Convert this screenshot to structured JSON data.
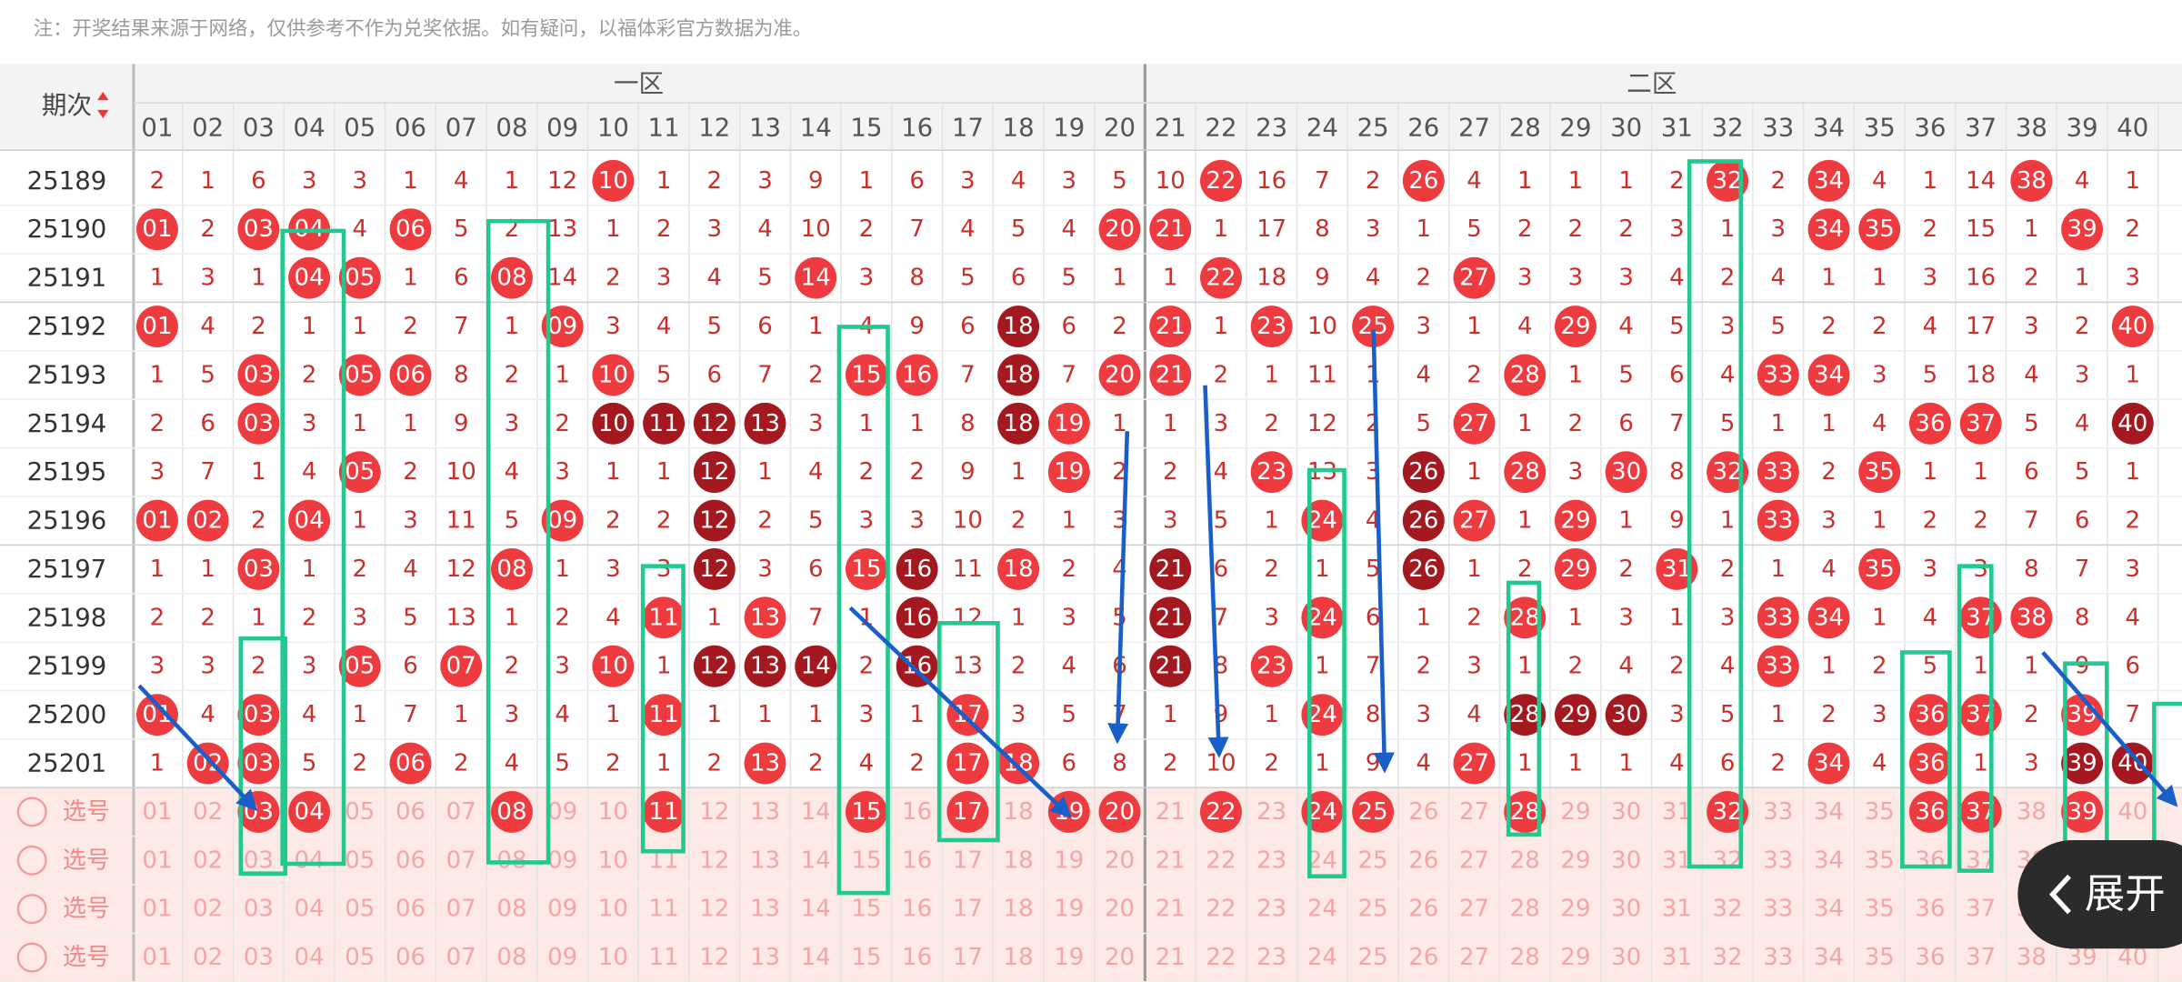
{
  "note": "注：开奖结果来源于网络，仅供参考不作为兑奖依据。如有疑问，以福体彩官方数据为准。",
  "header": {
    "issue_label": "期次",
    "zones": [
      "一区",
      "二区"
    ],
    "columns": [
      "01",
      "02",
      "03",
      "04",
      "05",
      "06",
      "07",
      "08",
      "09",
      "10",
      "11",
      "12",
      "13",
      "14",
      "15",
      "16",
      "17",
      "18",
      "19",
      "20",
      "21",
      "22",
      "23",
      "24",
      "25",
      "26",
      "27",
      "28",
      "29",
      "30",
      "31",
      "32",
      "33",
      "34",
      "35",
      "36",
      "37",
      "38",
      "39",
      "40"
    ]
  },
  "draws": [
    {
      "issue": "25189",
      "cells": [
        "2",
        "1",
        "6",
        "3",
        "3",
        "1",
        "4",
        "1",
        "12",
        "10",
        "1",
        "2",
        "3",
        "9",
        "1",
        "6",
        "3",
        "4",
        "3",
        "5",
        "10",
        "22",
        "16",
        "7",
        "2",
        "26",
        "4",
        "1",
        "1",
        "1",
        "2",
        "32",
        "2",
        "34",
        "4",
        "1",
        "14",
        "38",
        "4",
        "1"
      ]
    },
    {
      "issue": "25190",
      "cells": [
        "01",
        "2",
        "03",
        "04",
        "4",
        "06",
        "5",
        "2",
        "13",
        "1",
        "2",
        "3",
        "4",
        "10",
        "2",
        "7",
        "4",
        "5",
        "4",
        "20",
        "21",
        "1",
        "17",
        "8",
        "3",
        "1",
        "5",
        "2",
        "2",
        "2",
        "3",
        "1",
        "3",
        "34",
        "35",
        "2",
        "15",
        "1",
        "39",
        "2"
      ]
    },
    {
      "issue": "25191",
      "cells": [
        "1",
        "3",
        "1",
        "04",
        "05",
        "1",
        "6",
        "08",
        "14",
        "2",
        "3",
        "4",
        "5",
        "14",
        "3",
        "8",
        "5",
        "6",
        "5",
        "1",
        "1",
        "22",
        "18",
        "9",
        "4",
        "2",
        "27",
        "3",
        "3",
        "3",
        "4",
        "2",
        "4",
        "1",
        "1",
        "3",
        "16",
        "2",
        "1",
        "3"
      ]
    },
    {
      "issue": "25192",
      "cells": [
        "01",
        "4",
        "2",
        "1",
        "1",
        "2",
        "7",
        "1",
        "09",
        "3",
        "4",
        "5",
        "6",
        "1",
        "4",
        "9",
        "6",
        "18",
        "6",
        "2",
        "21",
        "1",
        "23",
        "10",
        "25",
        "3",
        "1",
        "4",
        "29",
        "4",
        "5",
        "3",
        "5",
        "2",
        "2",
        "4",
        "17",
        "3",
        "2",
        "40"
      ],
      "dark": [
        "18"
      ]
    },
    {
      "issue": "25193",
      "cells": [
        "1",
        "5",
        "03",
        "2",
        "05",
        "06",
        "8",
        "2",
        "1",
        "10",
        "5",
        "6",
        "7",
        "2",
        "15",
        "16",
        "7",
        "18",
        "7",
        "20",
        "21",
        "2",
        "1",
        "11",
        "1",
        "4",
        "2",
        "28",
        "1",
        "5",
        "6",
        "4",
        "33",
        "34",
        "3",
        "5",
        "18",
        "4",
        "3",
        "1"
      ],
      "dark": [
        "18"
      ]
    },
    {
      "issue": "25194",
      "cells": [
        "2",
        "6",
        "03",
        "3",
        "1",
        "1",
        "9",
        "3",
        "2",
        "10",
        "11",
        "12",
        "13",
        "3",
        "1",
        "1",
        "8",
        "18",
        "19",
        "1",
        "1",
        "3",
        "2",
        "12",
        "2",
        "5",
        "27",
        "1",
        "2",
        "6",
        "7",
        "5",
        "1",
        "1",
        "4",
        "36",
        "37",
        "5",
        "4",
        "40"
      ],
      "dark": [
        "10",
        "11",
        "12",
        "13",
        "18",
        "40"
      ]
    },
    {
      "issue": "25195",
      "cells": [
        "3",
        "7",
        "1",
        "4",
        "05",
        "2",
        "10",
        "4",
        "3",
        "1",
        "1",
        "12",
        "1",
        "4",
        "2",
        "2",
        "9",
        "1",
        "19",
        "2",
        "2",
        "4",
        "23",
        "13",
        "3",
        "26",
        "1",
        "28",
        "3",
        "30",
        "8",
        "32",
        "33",
        "2",
        "35",
        "1",
        "1",
        "6",
        "5",
        "1"
      ],
      "dark": [
        "12",
        "26"
      ]
    },
    {
      "issue": "25196",
      "cells": [
        "01",
        "02",
        "2",
        "04",
        "1",
        "3",
        "11",
        "5",
        "09",
        "2",
        "2",
        "12",
        "2",
        "5",
        "3",
        "3",
        "10",
        "2",
        "1",
        "3",
        "3",
        "5",
        "1",
        "24",
        "4",
        "26",
        "27",
        "1",
        "29",
        "1",
        "9",
        "1",
        "33",
        "3",
        "1",
        "2",
        "2",
        "7",
        "6",
        "2"
      ],
      "dark": [
        "12",
        "26"
      ]
    },
    {
      "issue": "25197",
      "cells": [
        "1",
        "1",
        "03",
        "1",
        "2",
        "4",
        "12",
        "08",
        "1",
        "3",
        "3",
        "12",
        "3",
        "6",
        "15",
        "16",
        "11",
        "18",
        "2",
        "4",
        "21",
        "6",
        "2",
        "1",
        "5",
        "26",
        "1",
        "2",
        "29",
        "2",
        "31",
        "2",
        "1",
        "4",
        "35",
        "3",
        "3",
        "8",
        "7",
        "3"
      ],
      "dark": [
        "12",
        "16",
        "21",
        "26"
      ]
    },
    {
      "issue": "25198",
      "cells": [
        "2",
        "2",
        "1",
        "2",
        "3",
        "5",
        "13",
        "1",
        "2",
        "4",
        "11",
        "1",
        "13",
        "7",
        "1",
        "16",
        "12",
        "1",
        "3",
        "5",
        "21",
        "7",
        "3",
        "24",
        "6",
        "1",
        "2",
        "28",
        "1",
        "3",
        "1",
        "3",
        "33",
        "34",
        "1",
        "4",
        "37",
        "38",
        "8",
        "4"
      ],
      "dark": [
        "16",
        "21"
      ]
    },
    {
      "issue": "25199",
      "cells": [
        "3",
        "3",
        "2",
        "3",
        "05",
        "6",
        "07",
        "2",
        "3",
        "10",
        "1",
        "12",
        "13",
        "14",
        "2",
        "16",
        "13",
        "2",
        "4",
        "6",
        "21",
        "8",
        "23",
        "1",
        "7",
        "2",
        "3",
        "1",
        "2",
        "4",
        "2",
        "4",
        "33",
        "1",
        "2",
        "5",
        "1",
        "1",
        "9",
        "6"
      ],
      "dark": [
        "12",
        "13",
        "14",
        "16",
        "21"
      ]
    },
    {
      "issue": "25200",
      "cells": [
        "01",
        "4",
        "03",
        "4",
        "1",
        "7",
        "1",
        "3",
        "4",
        "1",
        "11",
        "1",
        "1",
        "1",
        "3",
        "1",
        "17",
        "3",
        "5",
        "7",
        "1",
        "9",
        "1",
        "24",
        "8",
        "3",
        "4",
        "28",
        "29",
        "30",
        "3",
        "5",
        "1",
        "2",
        "3",
        "36",
        "37",
        "2",
        "39",
        "7"
      ],
      "dark": [
        "28",
        "29",
        "30"
      ]
    },
    {
      "issue": "25201",
      "cells": [
        "1",
        "02",
        "03",
        "5",
        "2",
        "06",
        "2",
        "4",
        "5",
        "2",
        "1",
        "2",
        "13",
        "2",
        "4",
        "2",
        "17",
        "18",
        "6",
        "8",
        "2",
        "10",
        "2",
        "1",
        "9",
        "4",
        "27",
        "1",
        "1",
        "1",
        "4",
        "6",
        "2",
        "34",
        "4",
        "36",
        "1",
        "3",
        "39",
        "40"
      ],
      "dark": [
        "39",
        "40"
      ]
    }
  ],
  "pick_rows": [
    {
      "label": "选号",
      "picked": [
        "03",
        "04",
        "08",
        "11",
        "15",
        "17",
        "19",
        "20",
        "22",
        "24",
        "25",
        "28",
        "32",
        "36",
        "37",
        "39"
      ]
    },
    {
      "label": "选号"
    },
    {
      "label": "选号"
    },
    {
      "label": "选号"
    }
  ],
  "expand_button": "展开"
}
